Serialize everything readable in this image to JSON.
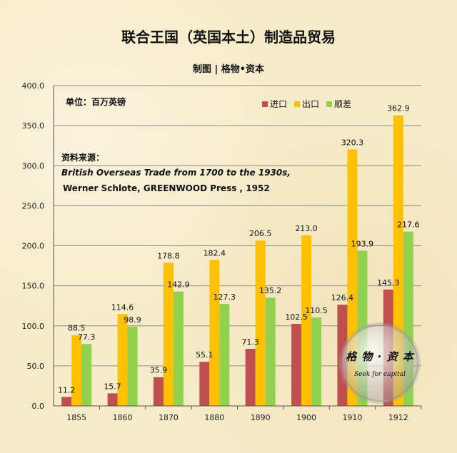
{
  "title": "联合王国（英国本土）制造品贸易",
  "subtitle": "制图 | 格物•资本",
  "unit_label": "单位：百万英镑",
  "source": {
    "heading": "资料来源：",
    "line1": "British Overseas Trade from 1700 to the 1930s,",
    "line2": "Werner Schlote,  GREENWOOD  Press , 1952"
  },
  "watermark": {
    "main": "格 物 · 资 本",
    "sub": "Seek for capital"
  },
  "chart_data": {
    "type": "bar",
    "categories": [
      "1855",
      "1860",
      "1870",
      "1880",
      "1890",
      "1900",
      "1910",
      "1912"
    ],
    "series": [
      {
        "name": "进口",
        "color": "#c0504d",
        "values": [
          11.2,
          15.7,
          35.9,
          55.1,
          71.3,
          102.5,
          126.4,
          145.3
        ]
      },
      {
        "name": "出口",
        "color": "#ffc000",
        "values": [
          88.5,
          114.6,
          178.8,
          182.4,
          206.5,
          213.0,
          320.3,
          362.9
        ]
      },
      {
        "name": "顺差",
        "color": "#92d050",
        "values": [
          77.3,
          98.9,
          142.9,
          127.3,
          135.2,
          110.5,
          193.9,
          217.6
        ]
      }
    ],
    "ylim": [
      0,
      400
    ],
    "yticks": [
      "0.0",
      "50.0",
      "100.0",
      "150.0",
      "200.0",
      "250.0",
      "300.0",
      "350.0",
      "400.0"
    ],
    "data_labels": [
      [
        "11.2",
        "15.7",
        "35.9",
        "55.1",
        "71.3",
        "102.5",
        "126.4",
        "145.3"
      ],
      [
        "88.5",
        "114.6",
        "178.8",
        "182.4",
        "206.5",
        "213.0",
        "320.3",
        "362.9"
      ],
      [
        "77.3",
        "98.9",
        "142.9",
        "127.3",
        "135.2",
        "110.5",
        "193.9",
        "217.6"
      ]
    ],
    "grid": true,
    "legend_position": "top-right"
  }
}
